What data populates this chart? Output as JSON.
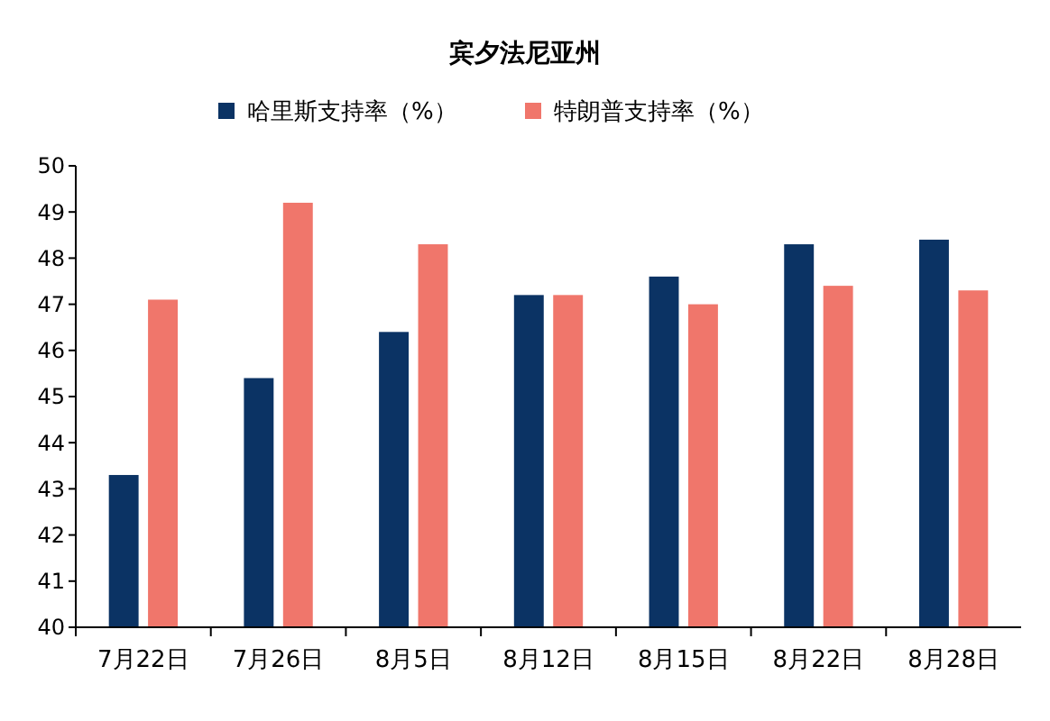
{
  "chart_data": {
    "type": "bar",
    "title": "宾夕法尼亚州",
    "categories": [
      "7月22日",
      "7月26日",
      "8月5日",
      "8月12日",
      "8月15日",
      "8月22日",
      "8月28日"
    ],
    "series": [
      {
        "name": "哈里斯支持率（%）",
        "color": "#0b3364",
        "values": [
          43.3,
          45.4,
          46.4,
          47.2,
          47.6,
          48.3,
          48.4
        ]
      },
      {
        "name": "特朗普支持率（%）",
        "color": "#f0766b",
        "values": [
          47.1,
          49.2,
          48.3,
          47.2,
          47.0,
          47.4,
          47.3
        ]
      }
    ],
    "ylim": [
      40,
      50
    ],
    "yticks": [
      40,
      41,
      42,
      43,
      44,
      45,
      46,
      47,
      48,
      49,
      50
    ],
    "legend": "top",
    "grid": false
  }
}
